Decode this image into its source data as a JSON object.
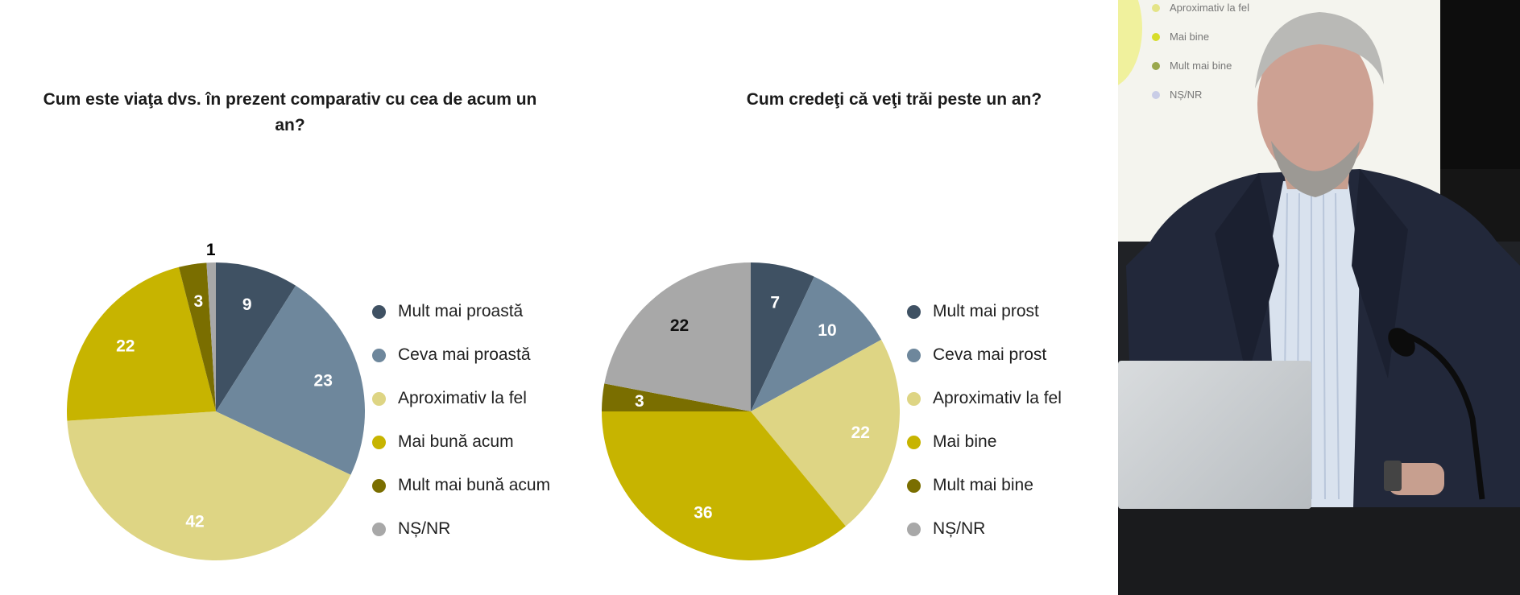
{
  "chart_data": [
    {
      "type": "pie",
      "title": "Cum este viaţa dvs. în prezent comparativ cu cea de acum un an?",
      "categories": [
        "Mult mai proastă",
        "Ceva mai proastă",
        "Aproximativ la fel",
        "Mai bună acum",
        "Mult mai bună acum",
        "NȘ/NR"
      ],
      "values": [
        9,
        23,
        42,
        22,
        3,
        1
      ],
      "colors": [
        "#3f5163",
        "#6e879c",
        "#ded584",
        "#c7b400",
        "#7a6e00",
        "#a8a8a8"
      ],
      "legend_position": "right"
    },
    {
      "type": "pie",
      "title": "Cum credeţi că veţi trăi peste un an?",
      "categories": [
        "Mult mai prost",
        "Ceva mai prost",
        "Aproximativ la fel",
        "Mai bine",
        "Mult mai bine",
        "NȘ/NR"
      ],
      "values": [
        7,
        10,
        22,
        36,
        3,
        22
      ],
      "colors": [
        "#3f5163",
        "#6e879c",
        "#ded584",
        "#c7b400",
        "#7a6e00",
        "#a8a8a8"
      ],
      "legend_position": "right"
    }
  ],
  "video_panel": {
    "screen_legend": [
      "Aproximativ la fel",
      "Mai bine",
      "Mult mai bine",
      "NȘ/NR"
    ],
    "screen_legend_colors": [
      "#e4e487",
      "#d7dd2a",
      "#9aa84d",
      "#c9cde6"
    ]
  }
}
